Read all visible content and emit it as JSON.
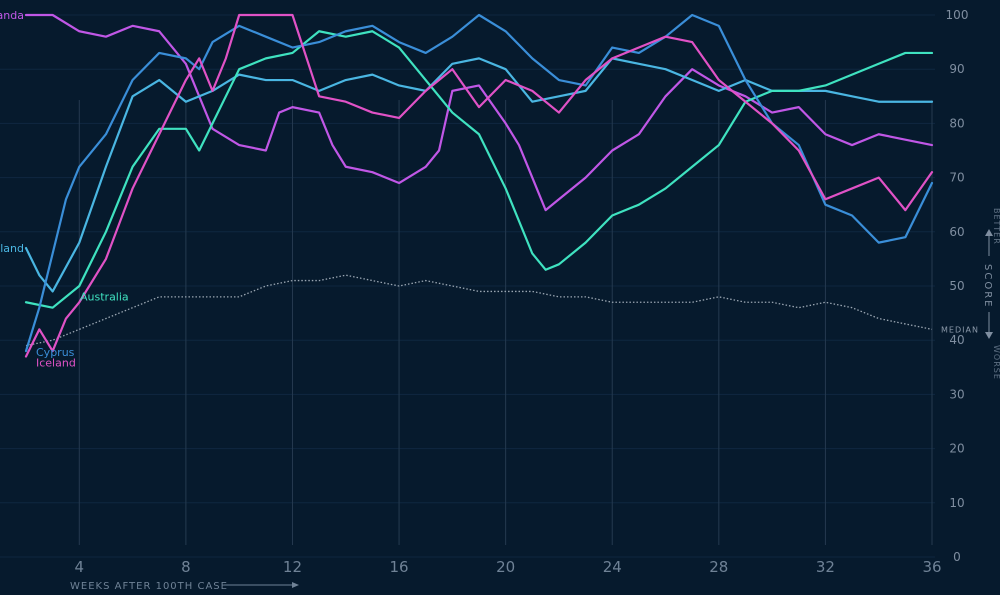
{
  "chart_data": {
    "type": "line",
    "xlabel": "WEEKS AFTER 100TH CASE",
    "ylabel": "SCORE",
    "y_better": "BETTER",
    "y_worse": "WORSE",
    "xlim": [
      2,
      36
    ],
    "ylim": [
      0,
      100
    ],
    "x_ticks": [
      4,
      8,
      12,
      16,
      20,
      24,
      28,
      32,
      36
    ],
    "y_ticks": [
      0,
      10,
      20,
      30,
      40,
      50,
      60,
      70,
      80,
      90,
      100
    ],
    "grid": true,
    "median": {
      "label": "MEDIAN",
      "color": "#9aa6b2",
      "points": [
        [
          2,
          39
        ],
        [
          3,
          40
        ],
        [
          4,
          42
        ],
        [
          5,
          44
        ],
        [
          6,
          46
        ],
        [
          7,
          48
        ],
        [
          8,
          48
        ],
        [
          9,
          48
        ],
        [
          10,
          48
        ],
        [
          11,
          50
        ],
        [
          12,
          51
        ],
        [
          13,
          51
        ],
        [
          14,
          52
        ],
        [
          15,
          51
        ],
        [
          16,
          50
        ],
        [
          17,
          51
        ],
        [
          18,
          50
        ],
        [
          19,
          49
        ],
        [
          20,
          49
        ],
        [
          21,
          49
        ],
        [
          22,
          48
        ],
        [
          23,
          48
        ],
        [
          24,
          47
        ],
        [
          25,
          47
        ],
        [
          26,
          47
        ],
        [
          27,
          47
        ],
        [
          28,
          48
        ],
        [
          29,
          47
        ],
        [
          30,
          47
        ],
        [
          31,
          46
        ],
        [
          32,
          47
        ],
        [
          33,
          46
        ],
        [
          34,
          44
        ],
        [
          35,
          43
        ],
        [
          36,
          42
        ]
      ]
    },
    "series": [
      {
        "name": "Rwanda",
        "color": "#c057e6",
        "points": [
          [
            2,
            100
          ],
          [
            3,
            100
          ],
          [
            4,
            97
          ],
          [
            5,
            96
          ],
          [
            6,
            98
          ],
          [
            7,
            97
          ],
          [
            8,
            91
          ],
          [
            9,
            79
          ],
          [
            10,
            76
          ],
          [
            11,
            75
          ],
          [
            11.5,
            82
          ],
          [
            12,
            83
          ],
          [
            13,
            82
          ],
          [
            13.5,
            76
          ],
          [
            14,
            72
          ],
          [
            15,
            71
          ],
          [
            16,
            69
          ],
          [
            17,
            72
          ],
          [
            17.5,
            75
          ],
          [
            18,
            86
          ],
          [
            19,
            87
          ],
          [
            20,
            80
          ],
          [
            20.5,
            76
          ],
          [
            21,
            70
          ],
          [
            21.5,
            64
          ],
          [
            22,
            66
          ],
          [
            23,
            70
          ],
          [
            24,
            75
          ],
          [
            25,
            78
          ],
          [
            26,
            85
          ],
          [
            27,
            90
          ],
          [
            28,
            87
          ],
          [
            29,
            85
          ],
          [
            30,
            82
          ],
          [
            31,
            83
          ],
          [
            32,
            78
          ],
          [
            33,
            76
          ],
          [
            34,
            78
          ],
          [
            35,
            77
          ],
          [
            36,
            76
          ]
        ]
      },
      {
        "name": "Thailand",
        "color": "#4ab6e2",
        "points": [
          [
            2,
            57
          ],
          [
            2.5,
            52
          ],
          [
            3,
            49
          ],
          [
            4,
            58
          ],
          [
            5,
            72
          ],
          [
            6,
            85
          ],
          [
            7,
            88
          ],
          [
            8,
            84
          ],
          [
            9,
            86
          ],
          [
            10,
            89
          ],
          [
            11,
            88
          ],
          [
            12,
            88
          ],
          [
            13,
            86
          ],
          [
            14,
            88
          ],
          [
            15,
            89
          ],
          [
            16,
            87
          ],
          [
            17,
            86
          ],
          [
            18,
            91
          ],
          [
            19,
            92
          ],
          [
            20,
            90
          ],
          [
            21,
            84
          ],
          [
            22,
            85
          ],
          [
            23,
            86
          ],
          [
            24,
            92
          ],
          [
            25,
            91
          ],
          [
            26,
            90
          ],
          [
            27,
            88
          ],
          [
            28,
            86
          ],
          [
            29,
            88
          ],
          [
            30,
            86
          ],
          [
            31,
            86
          ],
          [
            32,
            86
          ],
          [
            33,
            85
          ],
          [
            34,
            84
          ],
          [
            35,
            84
          ],
          [
            36,
            84
          ]
        ]
      },
      {
        "name": "Australia",
        "color": "#3fe2c0",
        "points": [
          [
            2,
            47
          ],
          [
            3,
            46
          ],
          [
            4,
            50
          ],
          [
            5,
            60
          ],
          [
            6,
            72
          ],
          [
            7,
            79
          ],
          [
            8,
            79
          ],
          [
            8.5,
            75
          ],
          [
            9,
            80
          ],
          [
            10,
            90
          ],
          [
            11,
            92
          ],
          [
            12,
            93
          ],
          [
            13,
            97
          ],
          [
            14,
            96
          ],
          [
            15,
            97
          ],
          [
            16,
            94
          ],
          [
            17,
            88
          ],
          [
            18,
            82
          ],
          [
            19,
            78
          ],
          [
            20,
            68
          ],
          [
            21,
            56
          ],
          [
            21.5,
            53
          ],
          [
            22,
            54
          ],
          [
            23,
            58
          ],
          [
            24,
            63
          ],
          [
            25,
            65
          ],
          [
            26,
            68
          ],
          [
            27,
            72
          ],
          [
            28,
            76
          ],
          [
            29,
            84
          ],
          [
            30,
            86
          ],
          [
            31,
            86
          ],
          [
            32,
            87
          ],
          [
            33,
            89
          ],
          [
            34,
            91
          ],
          [
            35,
            93
          ],
          [
            36,
            93
          ]
        ]
      },
      {
        "name": "Cyprus",
        "color": "#3a8ed8",
        "points": [
          [
            2,
            38
          ],
          [
            2.5,
            46
          ],
          [
            3,
            56
          ],
          [
            3.5,
            66
          ],
          [
            4,
            72
          ],
          [
            5,
            78
          ],
          [
            6,
            88
          ],
          [
            7,
            93
          ],
          [
            8,
            92
          ],
          [
            8.5,
            90
          ],
          [
            9,
            95
          ],
          [
            10,
            98
          ],
          [
            11,
            96
          ],
          [
            12,
            94
          ],
          [
            13,
            95
          ],
          [
            14,
            97
          ],
          [
            15,
            98
          ],
          [
            16,
            95
          ],
          [
            17,
            93
          ],
          [
            18,
            96
          ],
          [
            19,
            100
          ],
          [
            20,
            97
          ],
          [
            21,
            92
          ],
          [
            22,
            88
          ],
          [
            23,
            87
          ],
          [
            24,
            94
          ],
          [
            25,
            93
          ],
          [
            26,
            96
          ],
          [
            27,
            100
          ],
          [
            28,
            98
          ],
          [
            29,
            88
          ],
          [
            30,
            80
          ],
          [
            31,
            76
          ],
          [
            32,
            65
          ],
          [
            33,
            63
          ],
          [
            34,
            58
          ],
          [
            35,
            59
          ],
          [
            36,
            69
          ]
        ]
      },
      {
        "name": "Iceland",
        "color": "#e052c6",
        "points": [
          [
            2,
            37
          ],
          [
            2.5,
            42
          ],
          [
            3,
            38
          ],
          [
            3.5,
            44
          ],
          [
            4,
            47
          ],
          [
            5,
            55
          ],
          [
            6,
            68
          ],
          [
            7,
            78
          ],
          [
            8,
            88
          ],
          [
            8.5,
            92
          ],
          [
            9,
            86
          ],
          [
            9.5,
            92
          ],
          [
            10,
            100
          ],
          [
            11,
            100
          ],
          [
            12,
            100
          ],
          [
            13,
            85
          ],
          [
            14,
            84
          ],
          [
            15,
            82
          ],
          [
            16,
            81
          ],
          [
            17,
            86
          ],
          [
            18,
            90
          ],
          [
            19,
            83
          ],
          [
            20,
            88
          ],
          [
            21,
            86
          ],
          [
            22,
            82
          ],
          [
            23,
            88
          ],
          [
            24,
            92
          ],
          [
            25,
            94
          ],
          [
            26,
            96
          ],
          [
            27,
            95
          ],
          [
            28,
            88
          ],
          [
            29,
            84
          ],
          [
            30,
            80
          ],
          [
            31,
            75
          ],
          [
            32,
            66
          ],
          [
            33,
            68
          ],
          [
            34,
            70
          ],
          [
            35,
            64
          ],
          [
            36,
            71
          ]
        ]
      }
    ]
  }
}
